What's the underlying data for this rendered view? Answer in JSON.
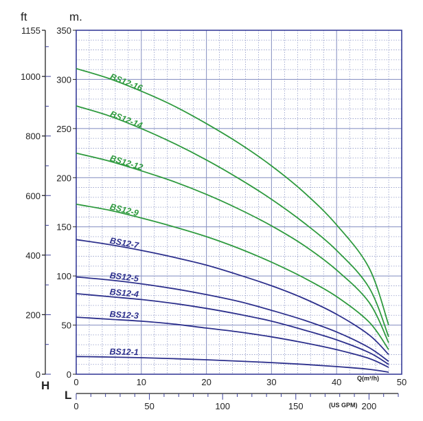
{
  "chart_data": {
    "type": "line",
    "colors": {
      "green": "#2e9a3e",
      "blue": "#2c2f8c",
      "grid": "#8e97c6",
      "frame": "#3a3f9a"
    },
    "x_flow": {
      "unit_label": "Q(m³/h)",
      "min": 0,
      "max": 50,
      "ticks": [
        0,
        10,
        20,
        30,
        40,
        50
      ]
    },
    "x_gpm": {
      "unit_label": "(US GPM)",
      "min": 0,
      "max": 220,
      "ticks": [
        0,
        50,
        100,
        150,
        200
      ]
    },
    "y_m": {
      "unit_label": "m.",
      "min": 0,
      "max": 350,
      "ticks": [
        0,
        50,
        100,
        150,
        200,
        250,
        300,
        350
      ]
    },
    "y_ft": {
      "unit_label": "ft",
      "min": 0,
      "max": 1155,
      "ticks": [
        0,
        200,
        400,
        600,
        800,
        1000,
        1155
      ]
    },
    "corner_labels": {
      "h": "H",
      "l": "L"
    },
    "series": [
      {
        "name": "BS12-16",
        "color": "green",
        "x": [
          0,
          5,
          10,
          15,
          20,
          25,
          30,
          35,
          40,
          45,
          48
        ],
        "y": [
          311,
          301,
          288,
          273,
          255,
          235,
          212,
          185,
          152,
          108,
          50
        ]
      },
      {
        "name": "BS12-14",
        "color": "green",
        "x": [
          0,
          5,
          10,
          15,
          20,
          25,
          30,
          35,
          40,
          45,
          48
        ],
        "y": [
          273,
          263,
          250,
          235,
          218,
          199,
          178,
          154,
          126,
          88,
          38
        ]
      },
      {
        "name": "BS12-12",
        "color": "green",
        "x": [
          0,
          5,
          10,
          15,
          20,
          25,
          30,
          35,
          40,
          45,
          48
        ],
        "y": [
          225,
          217,
          207,
          196,
          183,
          168,
          151,
          131,
          106,
          73,
          32
        ]
      },
      {
        "name": "BS12-9",
        "color": "green",
        "x": [
          0,
          5,
          10,
          15,
          20,
          25,
          30,
          35,
          40,
          45,
          48
        ],
        "y": [
          173,
          167,
          159,
          150,
          140,
          128,
          114,
          98,
          79,
          53,
          25
        ]
      },
      {
        "name": "BS12-7",
        "color": "blue",
        "x": [
          0,
          5,
          10,
          15,
          20,
          25,
          30,
          35,
          40,
          45,
          48
        ],
        "y": [
          137,
          132,
          126,
          119,
          111,
          101,
          90,
          77,
          61,
          40,
          20
        ]
      },
      {
        "name": "BS12-5",
        "color": "blue",
        "x": [
          0,
          5,
          10,
          15,
          20,
          25,
          30,
          35,
          40,
          45,
          48
        ],
        "y": [
          99,
          96,
          92,
          87,
          81,
          74,
          65,
          55,
          43,
          27,
          13
        ]
      },
      {
        "name": "BS12-4",
        "color": "blue",
        "x": [
          0,
          5,
          10,
          15,
          20,
          25,
          30,
          35,
          40,
          45,
          48
        ],
        "y": [
          82,
          79,
          76,
          72,
          67,
          61,
          54,
          45,
          35,
          22,
          10
        ]
      },
      {
        "name": "BS12-3",
        "color": "blue",
        "x": [
          0,
          5,
          10,
          15,
          20,
          25,
          30,
          35,
          40,
          45,
          48
        ],
        "y": [
          58,
          56,
          54,
          51,
          47,
          43,
          38,
          32,
          25,
          16,
          7
        ]
      },
      {
        "name": "BS12-1",
        "color": "blue",
        "x": [
          0,
          5,
          10,
          15,
          20,
          25,
          30,
          35,
          40,
          45,
          48
        ],
        "y": [
          18,
          17.5,
          16.8,
          15.8,
          14.7,
          13.3,
          11.8,
          10,
          7.8,
          5,
          2
        ]
      }
    ]
  }
}
